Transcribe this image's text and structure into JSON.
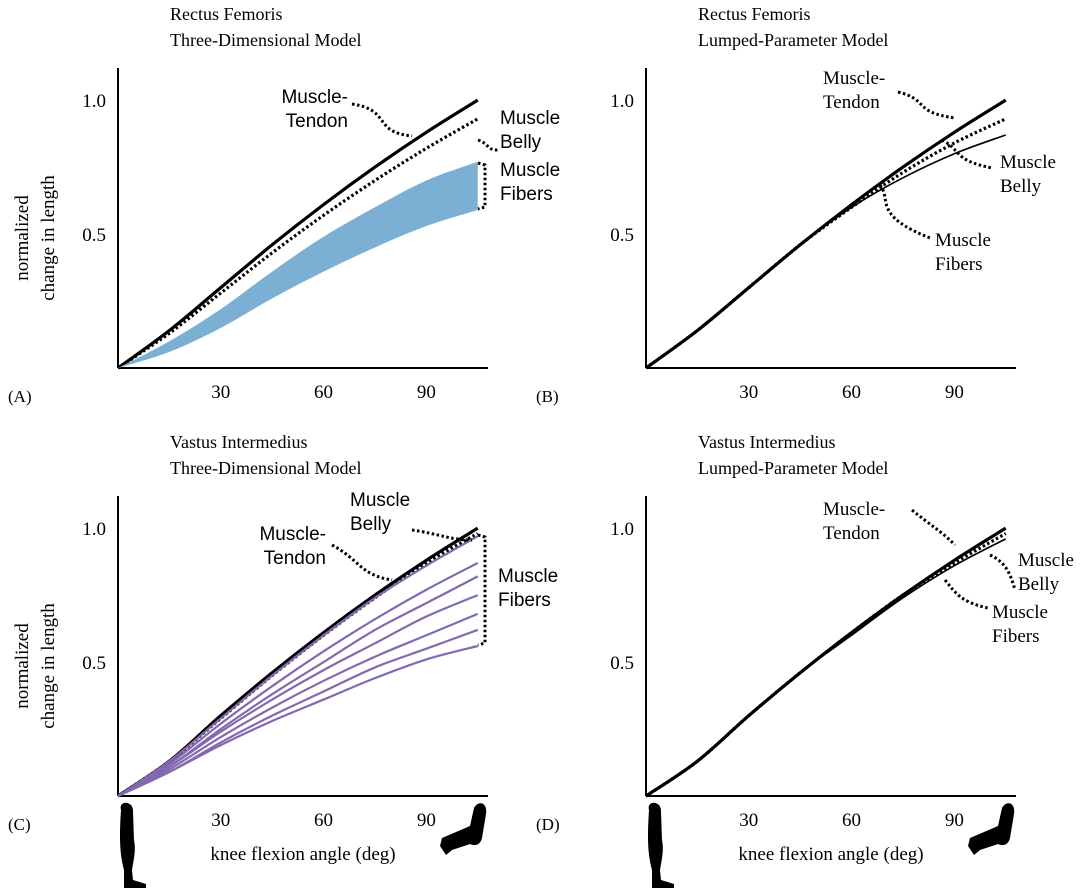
{
  "chart_data": [
    {
      "type": "line",
      "panel_label": "(A)",
      "title": [
        "Rectus Femoris",
        "Three-Dimensional Model"
      ],
      "y_label": [
        "normalized",
        "change in length"
      ],
      "xlim": [
        0,
        108
      ],
      "ylim": [
        0,
        1.12
      ],
      "xticks": [
        30,
        60,
        90
      ],
      "yticks": [
        0.5,
        {
          "value": 1,
          "label": "1.0"
        }
      ],
      "x": [
        0,
        15,
        30,
        45,
        60,
        75,
        90,
        105
      ],
      "series": [
        {
          "label": [
            "Muscle-",
            "Tendon"
          ],
          "style": "solid",
          "color": "#000000",
          "values": [
            0,
            0.14,
            0.3,
            0.46,
            0.61,
            0.75,
            0.88,
            1.0
          ]
        },
        {
          "label": [
            "Muscle",
            "Belly"
          ],
          "style": "dotted",
          "color": "#000000",
          "values": [
            0,
            0.13,
            0.28,
            0.43,
            0.57,
            0.7,
            0.82,
            0.93
          ]
        },
        {
          "label": [
            "Muscle",
            "Fibers"
          ],
          "style": "band",
          "color": "#7bafd4",
          "high": [
            0,
            0.1,
            0.22,
            0.36,
            0.49,
            0.6,
            0.7,
            0.77
          ],
          "low": [
            0,
            0.06,
            0.15,
            0.26,
            0.36,
            0.45,
            0.53,
            0.59
          ]
        }
      ]
    },
    {
      "type": "line",
      "panel_label": "(B)",
      "title": [
        "Rectus Femoris",
        "Lumped-Parameter Model"
      ],
      "xlim": [
        0,
        108
      ],
      "ylim": [
        0,
        1.12
      ],
      "xticks": [
        30,
        60,
        90
      ],
      "yticks": [
        0.5,
        {
          "value": 1,
          "label": "1.0"
        }
      ],
      "x": [
        0,
        15,
        30,
        45,
        60,
        75,
        90,
        105
      ],
      "series": [
        {
          "label": [
            "Muscle-",
            "Tendon"
          ],
          "style": "solid",
          "color": "#000000",
          "values": [
            0,
            0.14,
            0.3,
            0.46,
            0.61,
            0.75,
            0.88,
            1.0
          ]
        },
        {
          "label": [
            "Muscle",
            "Belly"
          ],
          "style": "dotted",
          "color": "#000000",
          "values": [
            0,
            0.14,
            0.3,
            0.46,
            0.6,
            0.73,
            0.84,
            0.93
          ]
        },
        {
          "label": [
            "Muscle",
            "Fibers"
          ],
          "style": "thin",
          "color": "#000000",
          "values": [
            0,
            0.14,
            0.3,
            0.46,
            0.6,
            0.71,
            0.8,
            0.87
          ]
        }
      ]
    },
    {
      "type": "line",
      "panel_label": "(C)",
      "title": [
        "Vastus Intermedius",
        "Three-Dimensional Model"
      ],
      "y_label": [
        "normalized",
        "change in length"
      ],
      "x_label": "knee flexion angle (deg)",
      "xlim": [
        0,
        108
      ],
      "ylim": [
        0,
        1.12
      ],
      "xticks": [
        30,
        60,
        90
      ],
      "yticks": [
        0.5,
        {
          "value": 1,
          "label": "1.0"
        }
      ],
      "x": [
        0,
        15,
        30,
        45,
        60,
        75,
        90,
        105
      ],
      "series": [
        {
          "label": [
            "Muscle",
            "Belly"
          ],
          "style": "dotted",
          "color": "#000000",
          "values": [
            0,
            0.13,
            0.29,
            0.45,
            0.6,
            0.74,
            0.87,
            0.98
          ]
        },
        {
          "label": [
            "Muscle-",
            "Tendon"
          ],
          "style": "solid",
          "color": "#000000",
          "values": [
            0,
            0.13,
            0.3,
            0.46,
            0.61,
            0.75,
            0.88,
            1.0
          ]
        },
        {
          "label": [
            "Muscle",
            "Fibers"
          ],
          "style": "lines",
          "color": "#8468b0",
          "lines": [
            [
              0,
              0.13,
              0.29,
              0.45,
              0.6,
              0.74,
              0.86,
              0.97
            ],
            [
              0,
              0.12,
              0.27,
              0.41,
              0.54,
              0.66,
              0.77,
              0.87
            ],
            [
              0,
              0.11,
              0.25,
              0.38,
              0.5,
              0.62,
              0.72,
              0.82
            ],
            [
              0,
              0.11,
              0.24,
              0.36,
              0.47,
              0.57,
              0.67,
              0.75
            ],
            [
              0,
              0.1,
              0.22,
              0.33,
              0.43,
              0.52,
              0.6,
              0.68
            ],
            [
              0,
              0.09,
              0.2,
              0.3,
              0.39,
              0.48,
              0.55,
              0.62
            ],
            [
              0,
              0.09,
              0.19,
              0.28,
              0.36,
              0.44,
              0.51,
              0.56
            ]
          ]
        }
      ]
    },
    {
      "type": "line",
      "panel_label": "(D)",
      "title": [
        "Vastus Intermedius",
        "Lumped-Parameter Model"
      ],
      "x_label": "knee flexion angle (deg)",
      "xlim": [
        0,
        108
      ],
      "ylim": [
        0,
        1.12
      ],
      "xticks": [
        30,
        60,
        90
      ],
      "yticks": [
        0.5,
        {
          "value": 1,
          "label": "1.0"
        }
      ],
      "x": [
        0,
        15,
        30,
        45,
        60,
        75,
        90,
        105
      ],
      "series": [
        {
          "label": [
            "Muscle-",
            "Tendon"
          ],
          "style": "solid",
          "color": "#000000",
          "values": [
            0,
            0.13,
            0.3,
            0.46,
            0.61,
            0.75,
            0.88,
            1.0
          ]
        },
        {
          "label": [
            "Muscle",
            "Belly"
          ],
          "style": "dotted",
          "color": "#000000",
          "values": [
            0,
            0.13,
            0.3,
            0.46,
            0.61,
            0.75,
            0.87,
            0.98
          ]
        },
        {
          "label": [
            "Muscle",
            "Fibers"
          ],
          "style": "thin",
          "color": "#000000",
          "values": [
            0,
            0.13,
            0.3,
            0.46,
            0.6,
            0.74,
            0.86,
            0.96
          ]
        }
      ]
    }
  ]
}
